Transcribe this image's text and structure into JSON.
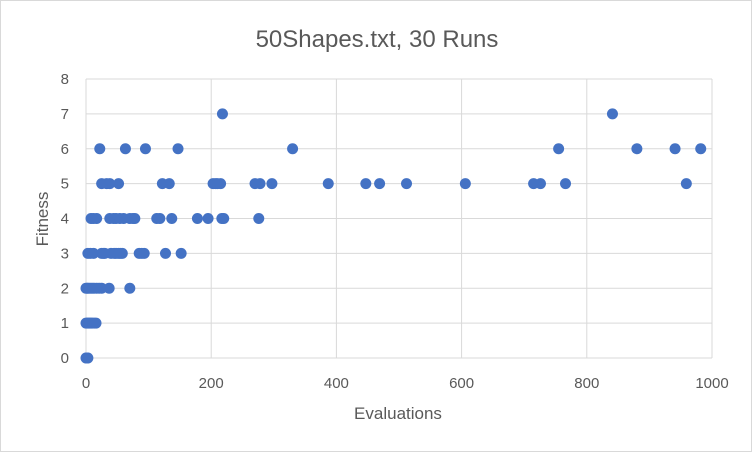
{
  "chart_data": {
    "type": "scatter",
    "title": "50Shapes.txt, 30 Runs",
    "xlabel": "Evaluations",
    "ylabel": "Fitness",
    "xlim": [
      0,
      1000
    ],
    "ylim": [
      0,
      8
    ],
    "x_ticks": [
      0,
      200,
      400,
      600,
      800,
      1000
    ],
    "y_ticks": [
      0,
      1,
      2,
      3,
      4,
      5,
      6,
      7,
      8
    ],
    "grid": "vertical-and-horizontal",
    "legend": "none",
    "marker_color": "#4472c4",
    "points": [
      [
        0,
        0
      ],
      [
        1,
        0
      ],
      [
        2,
        0
      ],
      [
        3,
        0
      ],
      [
        0,
        1
      ],
      [
        2,
        1
      ],
      [
        4,
        1
      ],
      [
        6,
        1
      ],
      [
        8,
        1
      ],
      [
        10,
        1
      ],
      [
        13,
        1
      ],
      [
        16,
        1
      ],
      [
        0,
        2
      ],
      [
        2,
        2
      ],
      [
        4,
        2
      ],
      [
        7,
        2
      ],
      [
        10,
        2
      ],
      [
        13,
        2
      ],
      [
        17,
        2
      ],
      [
        21,
        2
      ],
      [
        25,
        2
      ],
      [
        37,
        2
      ],
      [
        70,
        2
      ],
      [
        3,
        3
      ],
      [
        7,
        3
      ],
      [
        12,
        3
      ],
      [
        25,
        3
      ],
      [
        28,
        3
      ],
      [
        30,
        3
      ],
      [
        40,
        3
      ],
      [
        45,
        3
      ],
      [
        48,
        3
      ],
      [
        52,
        3
      ],
      [
        55,
        3
      ],
      [
        58,
        3
      ],
      [
        85,
        3
      ],
      [
        89,
        3
      ],
      [
        93,
        3
      ],
      [
        127,
        3
      ],
      [
        152,
        3
      ],
      [
        8,
        4
      ],
      [
        12,
        4
      ],
      [
        17,
        4
      ],
      [
        38,
        4
      ],
      [
        44,
        4
      ],
      [
        48,
        4
      ],
      [
        54,
        4
      ],
      [
        60,
        4
      ],
      [
        70,
        4
      ],
      [
        75,
        4
      ],
      [
        78,
        4
      ],
      [
        113,
        4
      ],
      [
        118,
        4
      ],
      [
        137,
        4
      ],
      [
        178,
        4
      ],
      [
        195,
        4
      ],
      [
        217,
        4
      ],
      [
        220,
        4
      ],
      [
        276,
        4
      ],
      [
        25,
        5
      ],
      [
        33,
        5
      ],
      [
        38,
        5
      ],
      [
        52,
        5
      ],
      [
        122,
        5
      ],
      [
        133,
        5
      ],
      [
        203,
        5
      ],
      [
        207,
        5
      ],
      [
        210,
        5
      ],
      [
        215,
        5
      ],
      [
        270,
        5
      ],
      [
        278,
        5
      ],
      [
        297,
        5
      ],
      [
        387,
        5
      ],
      [
        447,
        5
      ],
      [
        469,
        5
      ],
      [
        512,
        5
      ],
      [
        606,
        5
      ],
      [
        715,
        5
      ],
      [
        726,
        5
      ],
      [
        766,
        5
      ],
      [
        959,
        5
      ],
      [
        22,
        6
      ],
      [
        63,
        6
      ],
      [
        95,
        6
      ],
      [
        147,
        6
      ],
      [
        330,
        6
      ],
      [
        755,
        6
      ],
      [
        880,
        6
      ],
      [
        941,
        6
      ],
      [
        982,
        6
      ],
      [
        218,
        7
      ],
      [
        841,
        7
      ]
    ]
  }
}
